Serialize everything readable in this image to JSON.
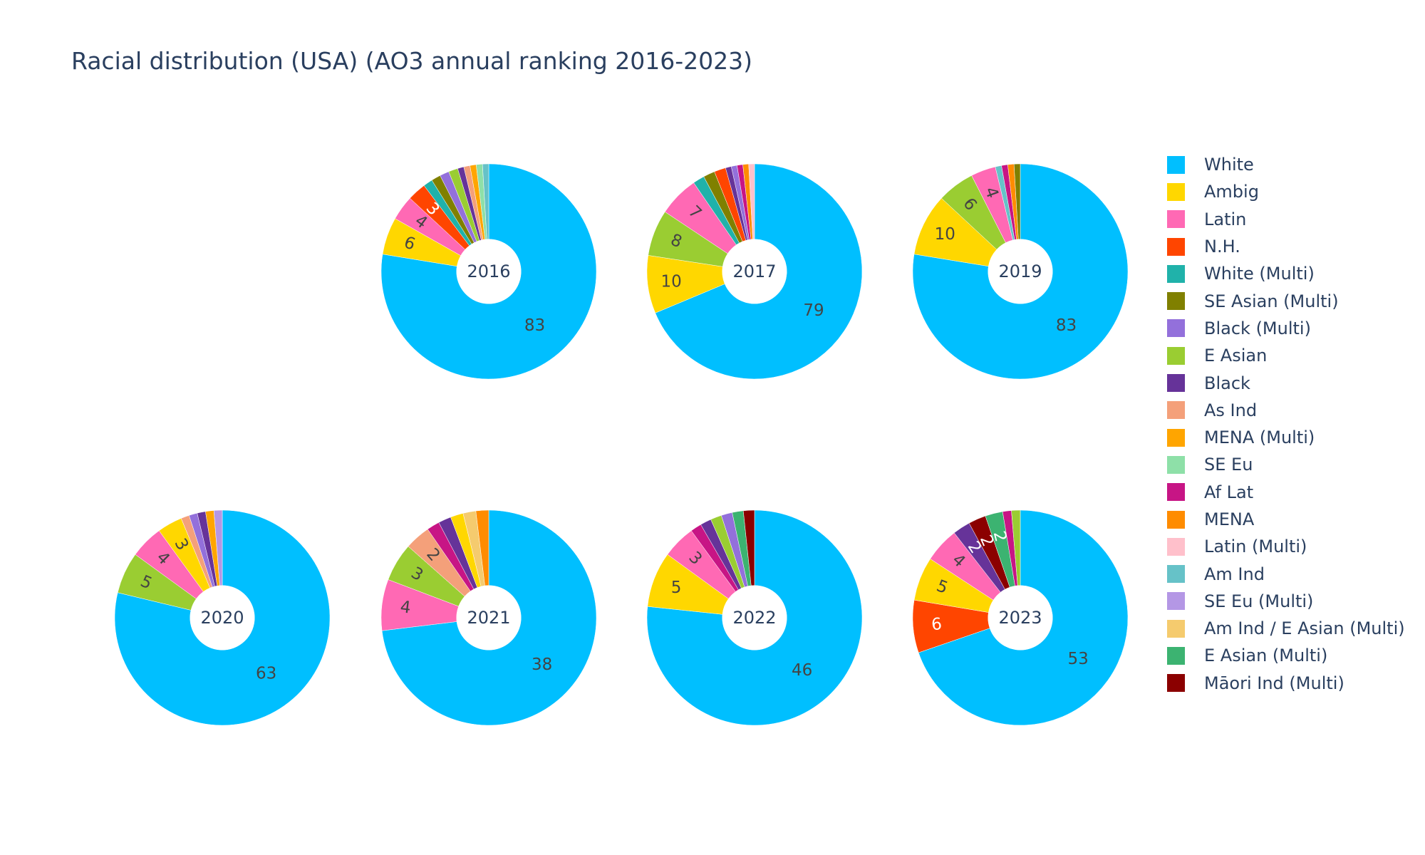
{
  "chart_data": {
    "type": "pie",
    "title": "Racial distribution (USA) (AO3 annual ranking 2016-2023)",
    "categories": [
      "White",
      "Ambig",
      "Latin",
      "N.H.",
      "White (Multi)",
      "SE Asian (Multi)",
      "Black (Multi)",
      "E Asian",
      "Black",
      "As Ind",
      "MENA (Multi)",
      "SE Eu",
      "Af Lat",
      "MENA",
      "Latin (Multi)",
      "Am Ind",
      "SE Eu (Multi)",
      "Am Ind / E Asian (Multi)",
      "E Asian (Multi)",
      "Māori Ind (Multi)"
    ],
    "colors": {
      "White": "#00bfff",
      "Ambig": "#ffd700",
      "Latin": "#ff69b4",
      "N.H.": "#ff4500",
      "White (Multi)": "#20b2aa",
      "SE Asian (Multi)": "#808000",
      "Black (Multi)": "#9370db",
      "E Asian": "#9acd32",
      "Black": "#663399",
      "As Ind": "#f4a07a",
      "MENA (Multi)": "#ffa500",
      "SE Eu": "#8ee0a8",
      "Af Lat": "#c71585",
      "MENA": "#ff8c00",
      "Latin (Multi)": "#ffc0cb",
      "Am Ind": "#66c2c8",
      "SE Eu (Multi)": "#b497e5",
      "Am Ind / E Asian (Multi)": "#f5cb6e",
      "E Asian (Multi)": "#3cb371",
      "Māori Ind (Multi)": "#8b0000"
    },
    "hole": 0.3,
    "direction": "clockwise",
    "sort": "descending",
    "legend_position": "right",
    "pies": [
      {
        "name": "2016",
        "values": [
          {
            "label": "White",
            "value": 83,
            "text": "83"
          },
          {
            "label": "Ambig",
            "value": 6,
            "text": "6"
          },
          {
            "label": "Latin",
            "value": 4,
            "text": "4"
          },
          {
            "label": "N.H.",
            "value": 3,
            "text": "3"
          },
          {
            "label": "White (Multi)",
            "value": 1.5
          },
          {
            "label": "SE Asian (Multi)",
            "value": 1.5
          },
          {
            "label": "Black (Multi)",
            "value": 1.5
          },
          {
            "label": "E Asian",
            "value": 1.5
          },
          {
            "label": "Black",
            "value": 1
          },
          {
            "label": "As Ind",
            "value": 1
          },
          {
            "label": "MENA (Multi)",
            "value": 1
          },
          {
            "label": "SE Eu",
            "value": 1
          },
          {
            "label": "Am Ind",
            "value": 1
          }
        ]
      },
      {
        "name": "2017",
        "values": [
          {
            "label": "White",
            "value": 79,
            "text": "79"
          },
          {
            "label": "Ambig",
            "value": 10,
            "text": "10"
          },
          {
            "label": "E Asian",
            "value": 8,
            "text": "8"
          },
          {
            "label": "Latin",
            "value": 7,
            "text": "7"
          },
          {
            "label": "White (Multi)",
            "value": 2
          },
          {
            "label": "SE Asian (Multi)",
            "value": 2
          },
          {
            "label": "N.H.",
            "value": 2
          },
          {
            "label": "Black",
            "value": 1
          },
          {
            "label": "Black (Multi)",
            "value": 1
          },
          {
            "label": "Af Lat",
            "value": 1
          },
          {
            "label": "MENA",
            "value": 1
          },
          {
            "label": "Latin (Multi)",
            "value": 1
          }
        ]
      },
      {
        "name": "2019",
        "values": [
          {
            "label": "White",
            "value": 83,
            "text": "83"
          },
          {
            "label": "Ambig",
            "value": 10,
            "text": "10"
          },
          {
            "label": "E Asian",
            "value": 6,
            "text": "6"
          },
          {
            "label": "Latin",
            "value": 4,
            "text": "4"
          },
          {
            "label": "Am Ind",
            "value": 1
          },
          {
            "label": "Af Lat",
            "value": 1
          },
          {
            "label": "MENA",
            "value": 1
          },
          {
            "label": "SE Asian (Multi)",
            "value": 1
          }
        ]
      },
      {
        "name": "2020",
        "values": [
          {
            "label": "White",
            "value": 63,
            "text": "63"
          },
          {
            "label": "E Asian",
            "value": 5,
            "text": "5"
          },
          {
            "label": "Latin",
            "value": 4,
            "text": "4"
          },
          {
            "label": "Ambig",
            "value": 3,
            "text": "3"
          },
          {
            "label": "As Ind",
            "value": 1
          },
          {
            "label": "Black (Multi)",
            "value": 1
          },
          {
            "label": "Black",
            "value": 1
          },
          {
            "label": "MENA (Multi)",
            "value": 1
          },
          {
            "label": "SE Eu (Multi)",
            "value": 1
          }
        ]
      },
      {
        "name": "2021",
        "values": [
          {
            "label": "White",
            "value": 38,
            "text": "38"
          },
          {
            "label": "Latin",
            "value": 4,
            "text": "4"
          },
          {
            "label": "E Asian",
            "value": 3,
            "text": "3"
          },
          {
            "label": "As Ind",
            "value": 2,
            "text": "2"
          },
          {
            "label": "Af Lat",
            "value": 1
          },
          {
            "label": "Black",
            "value": 1
          },
          {
            "label": "Ambig",
            "value": 1
          },
          {
            "label": "Am Ind / E Asian (Multi)",
            "value": 1
          },
          {
            "label": "MENA",
            "value": 1
          }
        ]
      },
      {
        "name": "2022",
        "values": [
          {
            "label": "White",
            "value": 46,
            "text": "46"
          },
          {
            "label": "Ambig",
            "value": 5,
            "text": "5"
          },
          {
            "label": "Latin",
            "value": 3,
            "text": "3"
          },
          {
            "label": "Af Lat",
            "value": 1
          },
          {
            "label": "Black",
            "value": 1
          },
          {
            "label": "E Asian",
            "value": 1
          },
          {
            "label": "Black (Multi)",
            "value": 1
          },
          {
            "label": "E Asian (Multi)",
            "value": 1
          },
          {
            "label": "Māori Ind (Multi)",
            "value": 1
          }
        ]
      },
      {
        "name": "2023",
        "values": [
          {
            "label": "White",
            "value": 53,
            "text": "53"
          },
          {
            "label": "N.H.",
            "value": 6,
            "text": "6"
          },
          {
            "label": "Ambig",
            "value": 5,
            "text": "5"
          },
          {
            "label": "Latin",
            "value": 4,
            "text": "4"
          },
          {
            "label": "Black",
            "value": 2,
            "text": "2"
          },
          {
            "label": "Māori Ind (Multi)",
            "value": 2,
            "text": "2"
          },
          {
            "label": "E Asian (Multi)",
            "value": 2,
            "text": "2"
          },
          {
            "label": "Af Lat",
            "value": 1
          },
          {
            "label": "E Asian",
            "value": 1
          }
        ]
      }
    ]
  }
}
